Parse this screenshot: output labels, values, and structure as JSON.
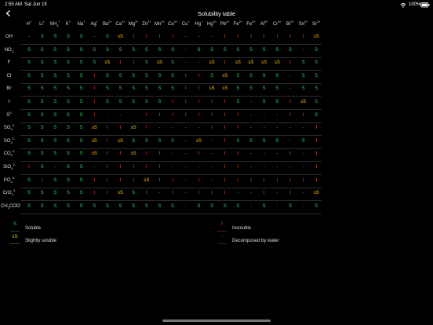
{
  "status": {
    "time": "2:55 AM",
    "date": "Sat Jun 15",
    "battery": "100%"
  },
  "header": {
    "title": "Solubility table"
  },
  "legend": [
    {
      "symbol": "S",
      "label": "Soluble",
      "color": "#2ecc71"
    },
    {
      "symbol": "I",
      "label": "Insoluble",
      "color": "#e74c3c"
    },
    {
      "symbol": "sS",
      "label": "Slightly soluble",
      "color": "#f1c40f"
    },
    {
      "symbol": "-",
      "label": "Decomposed by water",
      "color": "#888888"
    }
  ],
  "table": {
    "columns": [
      {
        "symbol": "H",
        "charge": "+"
      },
      {
        "symbol": "Li",
        "charge": "+"
      },
      {
        "symbol": "NH",
        "sub": "4",
        "charge": "+"
      },
      {
        "symbol": "K",
        "charge": "+"
      },
      {
        "symbol": "Na",
        "charge": "+"
      },
      {
        "symbol": "Ag",
        "charge": "+"
      },
      {
        "symbol": "Ba",
        "charge": "2+"
      },
      {
        "symbol": "Ca",
        "charge": "2+"
      },
      {
        "symbol": "Mg",
        "charge": "2+"
      },
      {
        "symbol": "Zn",
        "charge": "2+"
      },
      {
        "symbol": "Mn",
        "charge": "2+"
      },
      {
        "symbol": "Cu",
        "charge": "2+"
      },
      {
        "symbol": "Cu",
        "charge": "+"
      },
      {
        "symbol": "Hg",
        "charge": "+"
      },
      {
        "symbol": "Hg",
        "charge": "2+"
      },
      {
        "symbol": "Pb",
        "charge": "2+"
      },
      {
        "symbol": "Fe",
        "charge": "2+"
      },
      {
        "symbol": "Fe",
        "charge": "3+"
      },
      {
        "symbol": "Al",
        "charge": "3+"
      },
      {
        "symbol": "Cr",
        "charge": "3+"
      },
      {
        "symbol": "Bi",
        "charge": "3+"
      },
      {
        "symbol": "Sn",
        "charge": "2+"
      },
      {
        "symbol": "Sr",
        "charge": "2+"
      }
    ],
    "rows": [
      {
        "anion": {
          "symbol": "OH",
          "charge": "-"
        },
        "cells": [
          "-",
          "S",
          "S",
          "S",
          "S",
          "-",
          "S",
          "sS",
          "I",
          "I",
          "I",
          "I",
          "-",
          "-",
          "-",
          "I",
          "I",
          "I",
          "I",
          "I",
          "I",
          "I",
          "sS"
        ]
      },
      {
        "anion": {
          "symbol": "NO",
          "sub": "3",
          "charge": "-"
        },
        "cells": [
          "S",
          "S",
          "S",
          "S",
          "S",
          "S",
          "S",
          "S",
          "S",
          "S",
          "S",
          "S",
          "-",
          "S",
          "S",
          "S",
          "S",
          "S",
          "S",
          "S",
          "S",
          "-",
          "S"
        ]
      },
      {
        "anion": {
          "symbol": "F",
          "charge": "-"
        },
        "cells": [
          "S",
          "S",
          "S",
          "S",
          "S",
          "S",
          "sS",
          "I",
          "I",
          "S",
          "sS",
          "S",
          "-",
          "-",
          "sS",
          "I",
          "sS",
          "sS",
          "sS",
          "sS",
          "I",
          "S",
          "S"
        ]
      },
      {
        "anion": {
          "symbol": "Cl",
          "charge": "-"
        },
        "cells": [
          "S",
          "S",
          "S",
          "S",
          "S",
          "I",
          "S",
          "S",
          "S",
          "S",
          "S",
          "S",
          "I",
          "I",
          "S",
          "sS",
          "S",
          "S",
          "S",
          "S",
          "-",
          "S",
          "S"
        ]
      },
      {
        "anion": {
          "symbol": "Br",
          "charge": "-"
        },
        "cells": [
          "S",
          "S",
          "S",
          "S",
          "S",
          "I",
          "S",
          "S",
          "S",
          "S",
          "S",
          "S",
          "I",
          "I",
          "sS",
          "sS",
          "S",
          "S",
          "S",
          "S",
          "-",
          "S",
          "S"
        ]
      },
      {
        "anion": {
          "symbol": "I",
          "charge": "-"
        },
        "cells": [
          "S",
          "S",
          "S",
          "S",
          "S",
          "I",
          "S",
          "S",
          "S",
          "S",
          "S",
          "I",
          "I",
          "I",
          "I",
          "I",
          "S",
          "-",
          "S",
          "S",
          "I",
          "sS",
          "S"
        ]
      },
      {
        "anion": {
          "symbol": "S",
          "charge": "2-"
        },
        "cells": [
          "S",
          "S",
          "S",
          "S",
          "S",
          "I",
          "-",
          "-",
          "-",
          "I",
          "I",
          "I",
          "I",
          "I",
          "I",
          "I",
          "I",
          "-",
          "-",
          "-",
          "I",
          "I",
          "S"
        ]
      },
      {
        "anion": {
          "symbol": "SO",
          "sub": "3",
          "charge": "2-"
        },
        "cells": [
          "S",
          "S",
          "S",
          "S",
          "S",
          "sS",
          "I",
          "I",
          "sS",
          "I",
          "-",
          "-",
          "-",
          "-",
          "I",
          "I",
          "I",
          "-",
          "-",
          "-",
          "-",
          "-",
          "I"
        ]
      },
      {
        "anion": {
          "symbol": "SO",
          "sub": "4",
          "charge": "2-"
        },
        "cells": [
          "S",
          "S",
          "S",
          "S",
          "S",
          "sS",
          "I",
          "sS",
          "S",
          "S",
          "S",
          "S",
          "-",
          "sS",
          "-",
          "I",
          "S",
          "S",
          "S",
          "S",
          "-",
          "S",
          "I"
        ]
      },
      {
        "anion": {
          "symbol": "CO",
          "sub": "3",
          "charge": "2-"
        },
        "cells": [
          "S",
          "S",
          "S",
          "S",
          "S",
          "sS",
          "I",
          "I",
          "sS",
          "I",
          "I",
          "-",
          "-",
          "I",
          "-",
          "I",
          "I",
          "-",
          "-",
          "-",
          "I",
          "-",
          "I"
        ]
      },
      {
        "anion": {
          "symbol": "SiO",
          "sub": "3",
          "charge": "2-"
        },
        "cells": [
          "I",
          "S",
          "-",
          "S",
          "S",
          "-",
          "I",
          "I",
          "I",
          "I",
          "I",
          "-",
          "-",
          "-",
          "-",
          "I",
          "I",
          "-",
          "-",
          "-",
          "-",
          "-",
          "I"
        ]
      },
      {
        "anion": {
          "symbol": "PO",
          "sub": "4",
          "charge": "3-"
        },
        "cells": [
          "S",
          "I",
          "S",
          "S",
          "S",
          "I",
          "I",
          "I",
          "I",
          "sS",
          "I",
          "I",
          "-",
          "I",
          "-",
          "I",
          "I",
          "I",
          "I",
          "I",
          "I",
          "I",
          "I"
        ]
      },
      {
        "anion": {
          "symbol": "CrO",
          "sub": "4",
          "charge": "2-"
        },
        "cells": [
          "S",
          "S",
          "S",
          "S",
          "S",
          "I",
          "I",
          "sS",
          "S",
          "I",
          "-",
          "I",
          "-",
          "I",
          "I",
          "I",
          "-",
          "-",
          "I",
          "-",
          "I",
          "-",
          "sS"
        ]
      },
      {
        "anion": {
          "symbol": "CH",
          "sub": "3",
          "tail": "COO",
          "charge": "-"
        },
        "cells": [
          "S",
          "S",
          "S",
          "S",
          "S",
          "S",
          "S",
          "S",
          "S",
          "S",
          "S",
          "S",
          "-",
          "S",
          "S",
          "S",
          "S",
          "-",
          "S",
          "-",
          "S",
          "-",
          "S"
        ]
      }
    ]
  }
}
